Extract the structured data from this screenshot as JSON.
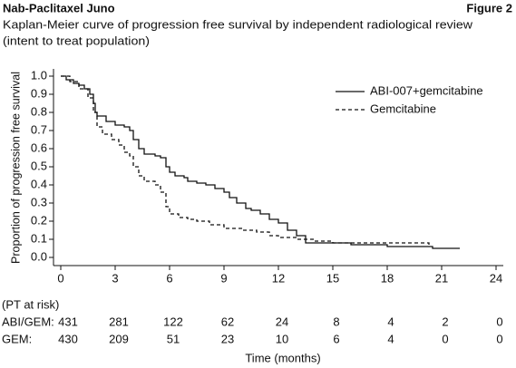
{
  "header": {
    "left": "Nab-Paclitaxel Juno",
    "right": "Figure 2"
  },
  "chart_data": {
    "type": "step-line",
    "title": "Kaplan-Meier curve of progression free survival by independent radiological review",
    "subtitle": "(intent to treat population)",
    "x_label": "Time (months)",
    "y_label": "Proportion of progression free survival",
    "xlim": [
      -0.4,
      24.4
    ],
    "ylim": [
      -0.045,
      1.04
    ],
    "xticks": [
      0,
      3,
      6,
      9,
      12,
      15,
      18,
      21,
      24
    ],
    "yticks": [
      {
        "value": 0,
        "label": "0.0"
      },
      0.1,
      0.2,
      0.3,
      0.4,
      0.5,
      0.6,
      0.7,
      0.8,
      0.9,
      {
        "value": 1,
        "label": "1.0"
      }
    ],
    "legend": "top-right",
    "series": [
      {
        "name": "ABI-007+gemcitabine",
        "color": "#111111",
        "line_style": "solid",
        "x": [
          0,
          0.3,
          0.7,
          1.0,
          1.3,
          1.6,
          1.8,
          1.9,
          2.0,
          2.5,
          3.0,
          3.5,
          3.8,
          4.0,
          4.3,
          4.6,
          5.2,
          5.5,
          5.8,
          6.0,
          6.3,
          6.8,
          7.0,
          7.5,
          8.0,
          8.5,
          9.0,
          9.3,
          9.7,
          10.2,
          10.5,
          11.0,
          11.5,
          12.0,
          12.5,
          13.0,
          13.5,
          16.0,
          18.0,
          20.5,
          22.0
        ],
        "values": [
          1.0,
          0.98,
          0.96,
          0.95,
          0.93,
          0.9,
          0.85,
          0.8,
          0.78,
          0.75,
          0.73,
          0.72,
          0.7,
          0.65,
          0.6,
          0.57,
          0.56,
          0.55,
          0.5,
          0.47,
          0.45,
          0.44,
          0.42,
          0.41,
          0.4,
          0.38,
          0.36,
          0.33,
          0.3,
          0.27,
          0.26,
          0.24,
          0.21,
          0.19,
          0.15,
          0.12,
          0.08,
          0.07,
          0.06,
          0.05,
          0.05
        ]
      },
      {
        "name": "Gemcitabine",
        "color": "#111111",
        "line_style": "dashed",
        "x": [
          0,
          0.5,
          1.0,
          1.5,
          1.8,
          2.0,
          2.3,
          2.8,
          3.2,
          3.5,
          3.8,
          4.0,
          4.3,
          4.6,
          5.2,
          5.5,
          5.8,
          6.0,
          6.5,
          7.0,
          7.5,
          8.2,
          9.0,
          10.0,
          10.8,
          11.5,
          12.0,
          13.0,
          14.0,
          15.0,
          19.0,
          20.3
        ],
        "values": [
          1.0,
          0.97,
          0.93,
          0.88,
          0.8,
          0.72,
          0.68,
          0.65,
          0.62,
          0.58,
          0.56,
          0.5,
          0.45,
          0.42,
          0.4,
          0.36,
          0.28,
          0.24,
          0.22,
          0.21,
          0.2,
          0.18,
          0.16,
          0.15,
          0.14,
          0.12,
          0.11,
          0.1,
          0.09,
          0.08,
          0.08,
          0.07
        ]
      }
    ],
    "risk_table": {
      "title": "(PT at risk)",
      "rows": [
        {
          "label": "ABI/GEM:",
          "values": [
            431,
            281,
            122,
            62,
            24,
            8,
            4,
            2,
            0
          ]
        },
        {
          "label": "GEM:",
          "values": [
            430,
            209,
            51,
            23,
            10,
            6,
            4,
            0,
            0
          ]
        }
      ]
    }
  }
}
